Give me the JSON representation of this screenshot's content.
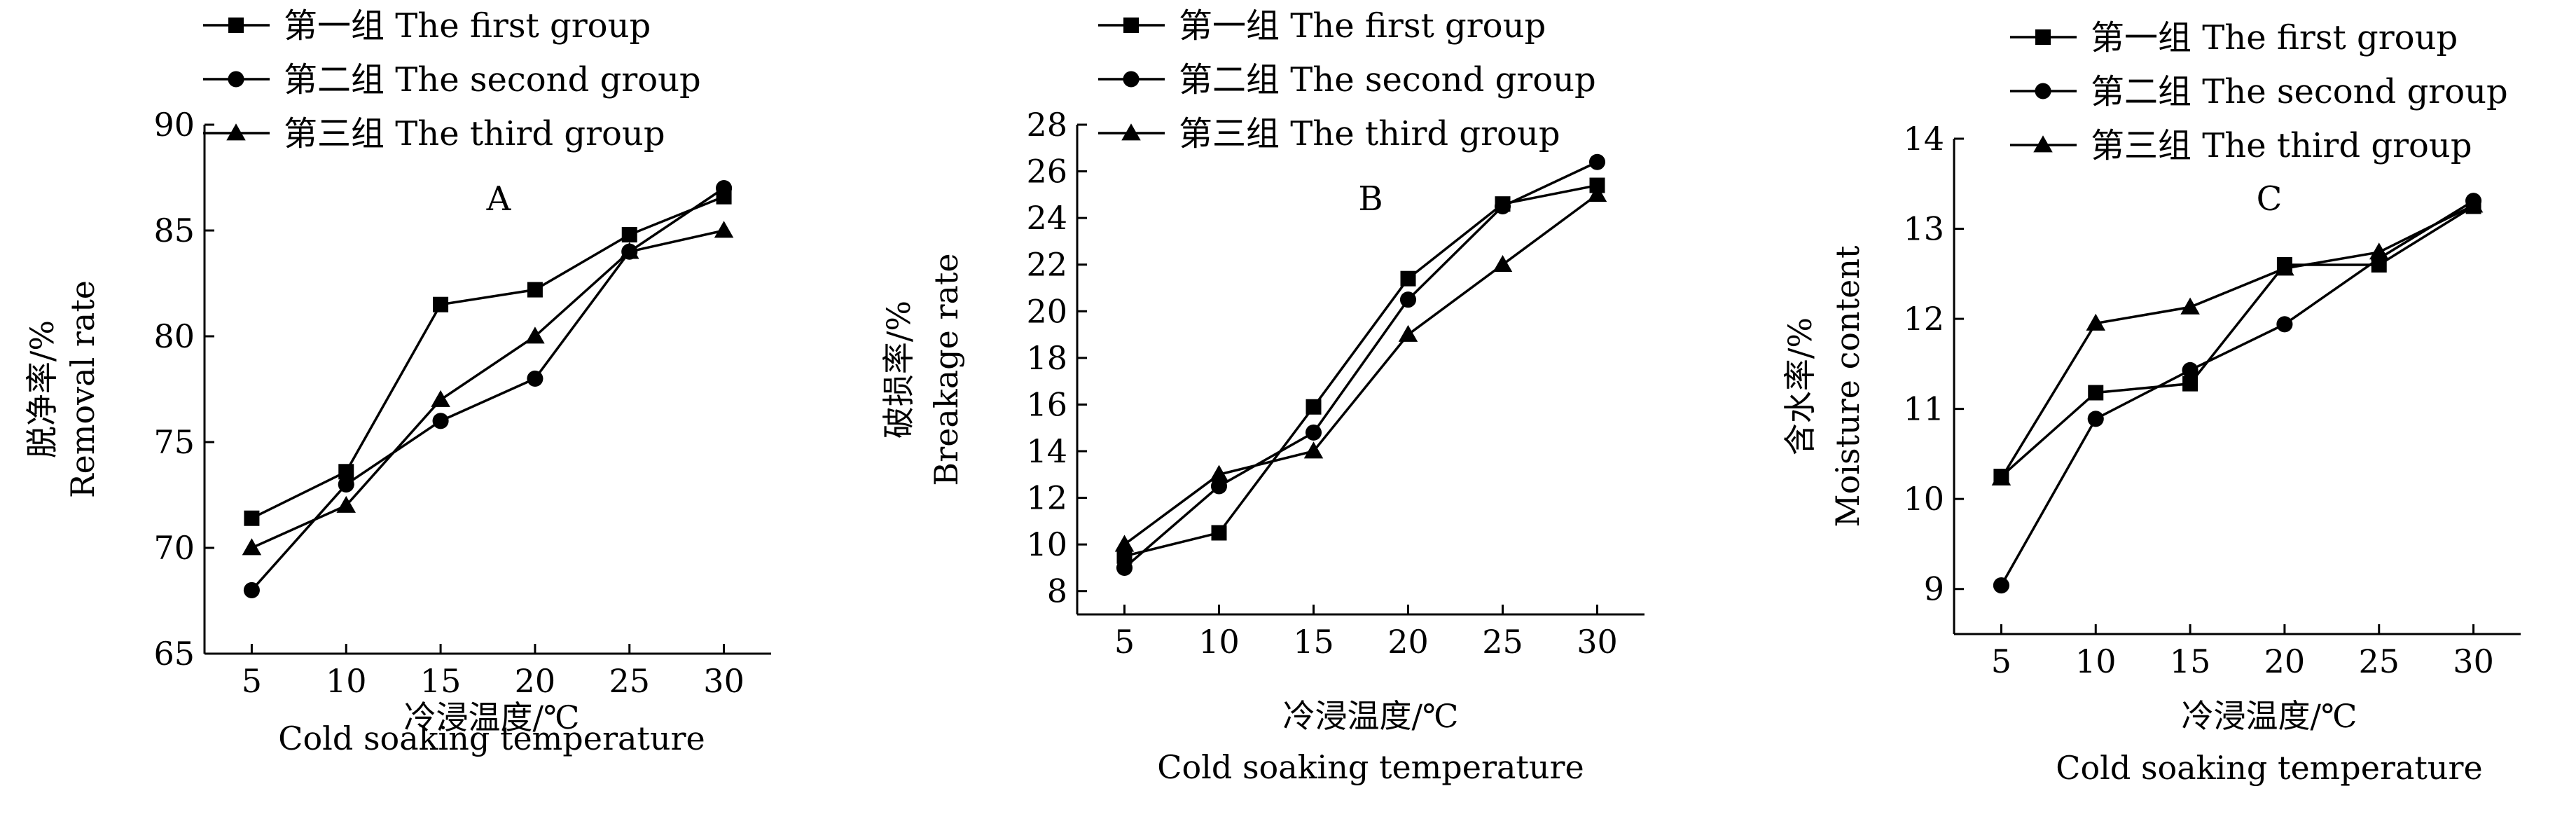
{
  "chart_data": [
    {
      "type": "line",
      "panel_label": "A",
      "x": [
        5,
        10,
        15,
        20,
        25,
        30
      ],
      "xlabel": "冷浸温度/℃",
      "xlabel_en": "Cold soaking temperature",
      "ylabel": "脱净率/%",
      "ylabel_en": "Removal rate",
      "xticks": [
        "5",
        "10",
        "15",
        "20",
        "25",
        "30"
      ],
      "yticks": [
        "65",
        "70",
        "75",
        "80",
        "85",
        "90"
      ],
      "ylim": [
        65,
        90
      ],
      "series": [
        {
          "name": "第一组 The first group",
          "marker": "square",
          "values": [
            71.4,
            73.6,
            81.5,
            82.2,
            84.8,
            86.6
          ]
        },
        {
          "name": "第二组 The second group",
          "marker": "circle",
          "values": [
            68.0,
            73.0,
            76.0,
            78.0,
            84.0,
            87.0
          ]
        },
        {
          "name": "第三组 The third group",
          "marker": "triangle",
          "values": [
            70.0,
            72.0,
            77.0,
            80.0,
            84.0,
            85.0
          ]
        }
      ]
    },
    {
      "type": "line",
      "panel_label": "B",
      "x": [
        5,
        10,
        15,
        20,
        25,
        30
      ],
      "xlabel": "冷浸温度/℃",
      "xlabel_en": "Cold soaking temperature",
      "ylabel": "破损率/%",
      "ylabel_en": "Breakage rate",
      "xticks": [
        "5",
        "10",
        "15",
        "20",
        "25",
        "30"
      ],
      "yticks": [
        "8",
        "10",
        "12",
        "14",
        "16",
        "18",
        "20",
        "22",
        "24",
        "26",
        "28"
      ],
      "ylim": [
        7,
        28
      ],
      "series": [
        {
          "name": "第一组 The first group",
          "marker": "square",
          "values": [
            9.5,
            10.5,
            15.9,
            21.4,
            24.6,
            25.4
          ]
        },
        {
          "name": "第二组 The second group",
          "marker": "circle",
          "values": [
            9.0,
            12.5,
            14.8,
            20.5,
            24.5,
            26.4
          ]
        },
        {
          "name": "第三组 The third group",
          "marker": "triangle",
          "values": [
            10.0,
            13.0,
            14.0,
            19.0,
            22.0,
            25.0
          ]
        }
      ]
    },
    {
      "type": "line",
      "panel_label": "C",
      "x": [
        5,
        10,
        15,
        20,
        25,
        30
      ],
      "xlabel": "冷浸温度/℃",
      "xlabel_en": "Cold soaking temperature",
      "ylabel": "含水率/%",
      "ylabel_en": "Moisture content",
      "xticks": [
        "5",
        "10",
        "15",
        "20",
        "25",
        "30"
      ],
      "yticks": [
        "9",
        "10",
        "11",
        "12",
        "13",
        "14"
      ],
      "ylim": [
        8.5,
        14
      ],
      "series": [
        {
          "name": "第一组 The first group",
          "marker": "square",
          "values": [
            10.25,
            11.18,
            11.28,
            12.6,
            12.6,
            13.25
          ]
        },
        {
          "name": "第二组 The second group",
          "marker": "circle",
          "values": [
            9.04,
            10.89,
            11.43,
            11.94,
            12.67,
            13.31
          ]
        },
        {
          "name": "第三组 The third group",
          "marker": "triangle",
          "values": [
            10.23,
            11.95,
            12.13,
            12.56,
            12.74,
            13.26
          ]
        }
      ]
    }
  ]
}
